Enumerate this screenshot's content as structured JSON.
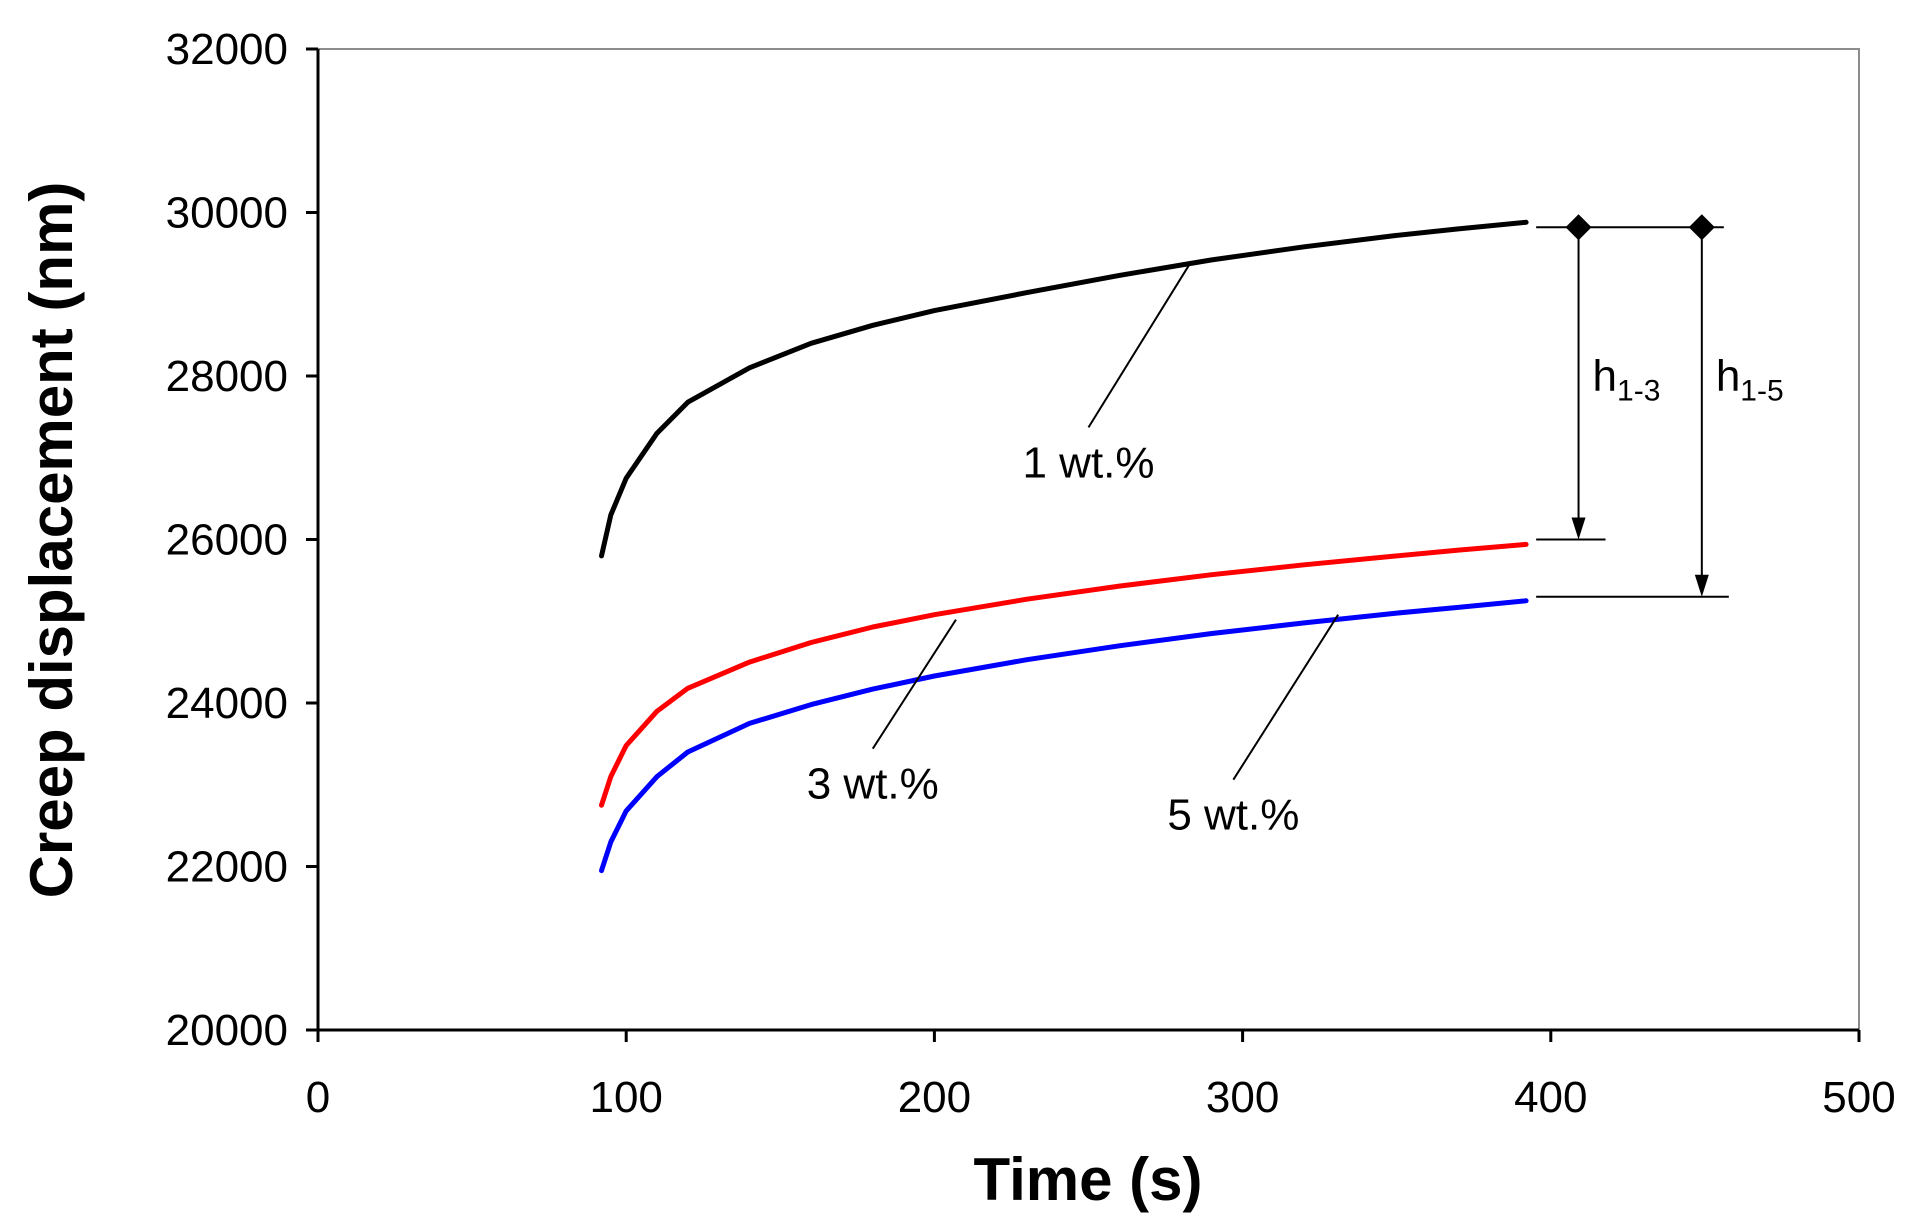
{
  "chart_data": {
    "type": "line",
    "title": "",
    "xlabel": "Time (s)",
    "ylabel": "Creep displacement (nm)",
    "xlim": [
      0,
      500
    ],
    "ylim": [
      20000,
      32000
    ],
    "x_ticks": [
      0,
      100,
      200,
      300,
      400,
      500
    ],
    "y_ticks": [
      20000,
      22000,
      24000,
      26000,
      28000,
      30000,
      32000
    ],
    "grid": false,
    "series": [
      {
        "name": "1 wt.%",
        "color": "#000000",
        "points": [
          [
            92,
            25800
          ],
          [
            95,
            26300
          ],
          [
            100,
            26750
          ],
          [
            110,
            27300
          ],
          [
            120,
            27680
          ],
          [
            140,
            28100
          ],
          [
            160,
            28400
          ],
          [
            180,
            28620
          ],
          [
            200,
            28800
          ],
          [
            230,
            29020
          ],
          [
            260,
            29230
          ],
          [
            290,
            29420
          ],
          [
            320,
            29580
          ],
          [
            350,
            29720
          ],
          [
            370,
            29800
          ],
          [
            392,
            29880
          ]
        ],
        "label_position": [
          250,
          26760
        ],
        "leader_to": [
          283,
          29380
        ]
      },
      {
        "name": "3 wt.%",
        "color": "#ff0000",
        "points": [
          [
            92,
            22750
          ],
          [
            95,
            23100
          ],
          [
            100,
            23480
          ],
          [
            110,
            23900
          ],
          [
            120,
            24180
          ],
          [
            140,
            24500
          ],
          [
            160,
            24740
          ],
          [
            180,
            24930
          ],
          [
            200,
            25080
          ],
          [
            230,
            25270
          ],
          [
            260,
            25430
          ],
          [
            290,
            25570
          ],
          [
            320,
            25690
          ],
          [
            350,
            25800
          ],
          [
            370,
            25870
          ],
          [
            392,
            25940
          ]
        ],
        "label_position": [
          180,
          22830
        ],
        "leader_to": [
          207,
          25020
        ]
      },
      {
        "name": "5 wt.%",
        "color": "#0000ff",
        "points": [
          [
            92,
            21950
          ],
          [
            95,
            22300
          ],
          [
            100,
            22680
          ],
          [
            110,
            23100
          ],
          [
            120,
            23400
          ],
          [
            140,
            23750
          ],
          [
            160,
            23980
          ],
          [
            180,
            24170
          ],
          [
            200,
            24330
          ],
          [
            230,
            24530
          ],
          [
            260,
            24700
          ],
          [
            290,
            24850
          ],
          [
            320,
            24980
          ],
          [
            350,
            25100
          ],
          [
            370,
            25170
          ],
          [
            392,
            25250
          ]
        ],
        "label_position": [
          297,
          22450
        ],
        "leader_to": [
          331,
          25080
        ]
      }
    ],
    "annotations": [
      {
        "label": "h",
        "subscript": "1-3",
        "x": 409,
        "y_from": 29820,
        "y_to": 26000,
        "label_y": 27820
      },
      {
        "label": "h",
        "subscript": "1-5",
        "x": 449,
        "y_from": 29820,
        "y_to": 25300,
        "label_y": 27820
      }
    ]
  }
}
